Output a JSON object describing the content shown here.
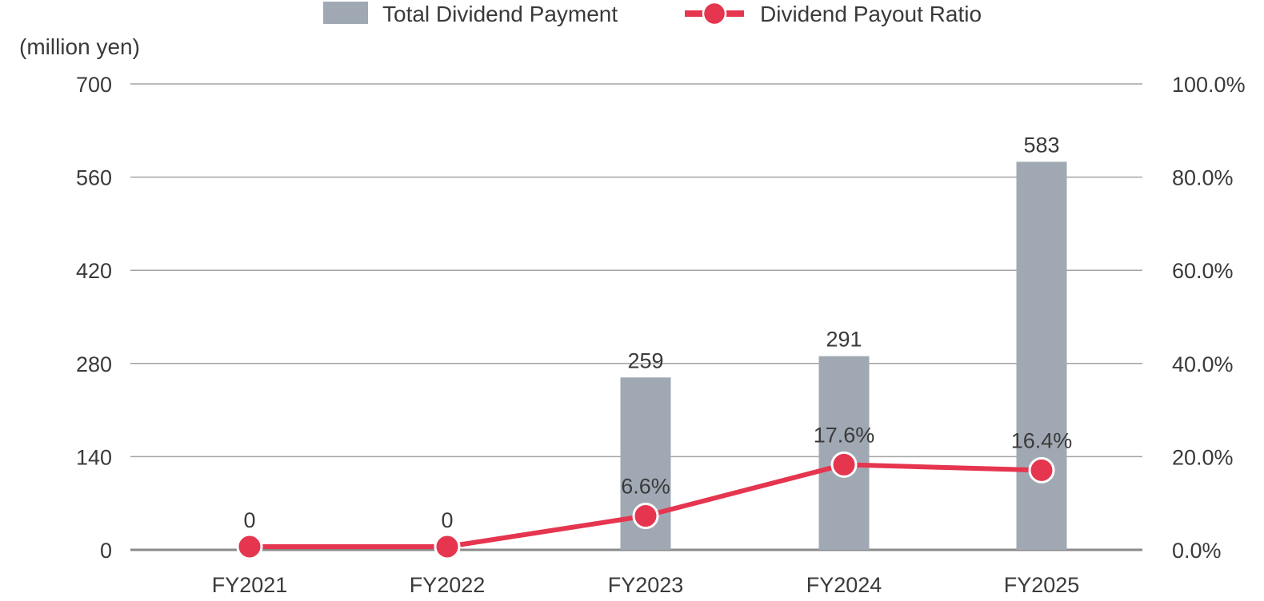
{
  "chart_data": {
    "type": "bar",
    "categories": [
      "FY2021",
      "FY2022",
      "FY2023",
      "FY2024",
      "FY2025"
    ],
    "series": [
      {
        "name": "Total Dividend Payment",
        "type": "bar",
        "axis": "left",
        "color": "#a0a9b3",
        "values": [
          0,
          0,
          259,
          291,
          583
        ],
        "labels": [
          "0",
          "0",
          "259",
          "291",
          "583"
        ]
      },
      {
        "name": "Dividend Payout Ratio",
        "type": "line",
        "axis": "right",
        "color": "#e5354f",
        "values": [
          0,
          0,
          6.6,
          17.6,
          16.4
        ],
        "labels": [
          "",
          "",
          "6.6%",
          "17.6%",
          "16.4%"
        ]
      }
    ],
    "y_left": {
      "unit_label": "(million yen)",
      "range": [
        0,
        700
      ],
      "ticks": [
        0,
        140,
        280,
        420,
        560,
        700
      ],
      "tick_labels": [
        "0",
        "140",
        "280",
        "420",
        "560",
        "700"
      ]
    },
    "y_right": {
      "range": [
        0,
        100
      ],
      "ticks": [
        0,
        20,
        40,
        60,
        80,
        100
      ],
      "tick_labels": [
        "0.0%",
        "20.0%",
        "40.0%",
        "60.0%",
        "80.0%",
        "100.0%"
      ]
    },
    "grid": true,
    "legend_position": "top-center"
  }
}
